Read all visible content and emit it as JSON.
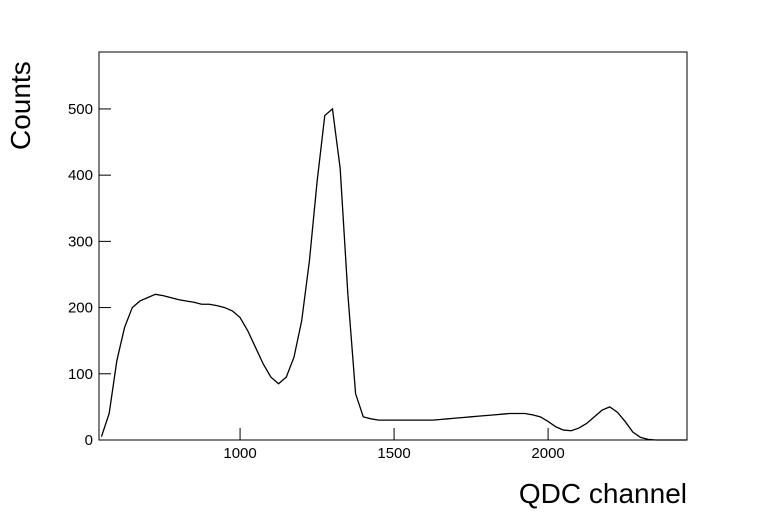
{
  "chart_data": {
    "type": "line",
    "x_label": "QDC channel",
    "y_label": "Counts",
    "x": [
      550,
      575,
      600,
      625,
      650,
      675,
      700,
      725,
      750,
      775,
      800,
      825,
      850,
      875,
      900,
      925,
      950,
      975,
      1000,
      1025,
      1050,
      1075,
      1100,
      1125,
      1150,
      1175,
      1200,
      1225,
      1250,
      1275,
      1300,
      1325,
      1350,
      1375,
      1400,
      1425,
      1450,
      1475,
      1500,
      1525,
      1550,
      1575,
      1600,
      1625,
      1650,
      1675,
      1700,
      1725,
      1750,
      1775,
      1800,
      1825,
      1850,
      1875,
      1900,
      1925,
      1950,
      1975,
      2000,
      2025,
      2050,
      2075,
      2100,
      2125,
      2150,
      2175,
      2200,
      2225,
      2250,
      2275,
      2300,
      2325,
      2350,
      2375,
      2400,
      2425,
      2450
    ],
    "series": [
      {
        "color": "#000000",
        "values": [
          5,
          40,
          120,
          170,
          200,
          210,
          215,
          220,
          218,
          215,
          212,
          210,
          208,
          205,
          205,
          203,
          200,
          195,
          185,
          165,
          140,
          115,
          95,
          85,
          95,
          125,
          180,
          270,
          390,
          490,
          500,
          410,
          220,
          70,
          35,
          32,
          30,
          30,
          30,
          30,
          30,
          30,
          30,
          30,
          31,
          32,
          33,
          34,
          35,
          36,
          37,
          38,
          39,
          40,
          40,
          40,
          38,
          35,
          28,
          20,
          15,
          14,
          18,
          25,
          35,
          45,
          50,
          42,
          28,
          12,
          4,
          1,
          0,
          0,
          0,
          0,
          0
        ]
      }
    ],
    "xlim": [
      542,
      2451
    ],
    "ylim": [
      0,
      586
    ],
    "xticks": [
      1000,
      1500,
      2000
    ],
    "yticks": [
      0,
      100,
      200,
      300,
      400,
      500
    ]
  }
}
